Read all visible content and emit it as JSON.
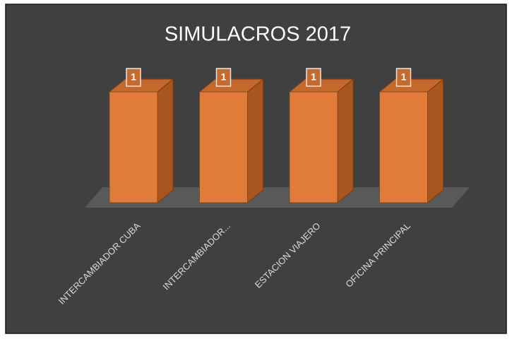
{
  "chart_data": {
    "type": "bar3d",
    "title": "SIMULACROS 2017",
    "categories": [
      "INTERCAMBIADOR CUBA",
      "INTERCAMBIADOR...",
      "ESTACION VIAJERO",
      "OFICINA PRINCIPAL"
    ],
    "values": [
      1,
      1,
      1,
      1
    ],
    "color": "#e07b39"
  }
}
